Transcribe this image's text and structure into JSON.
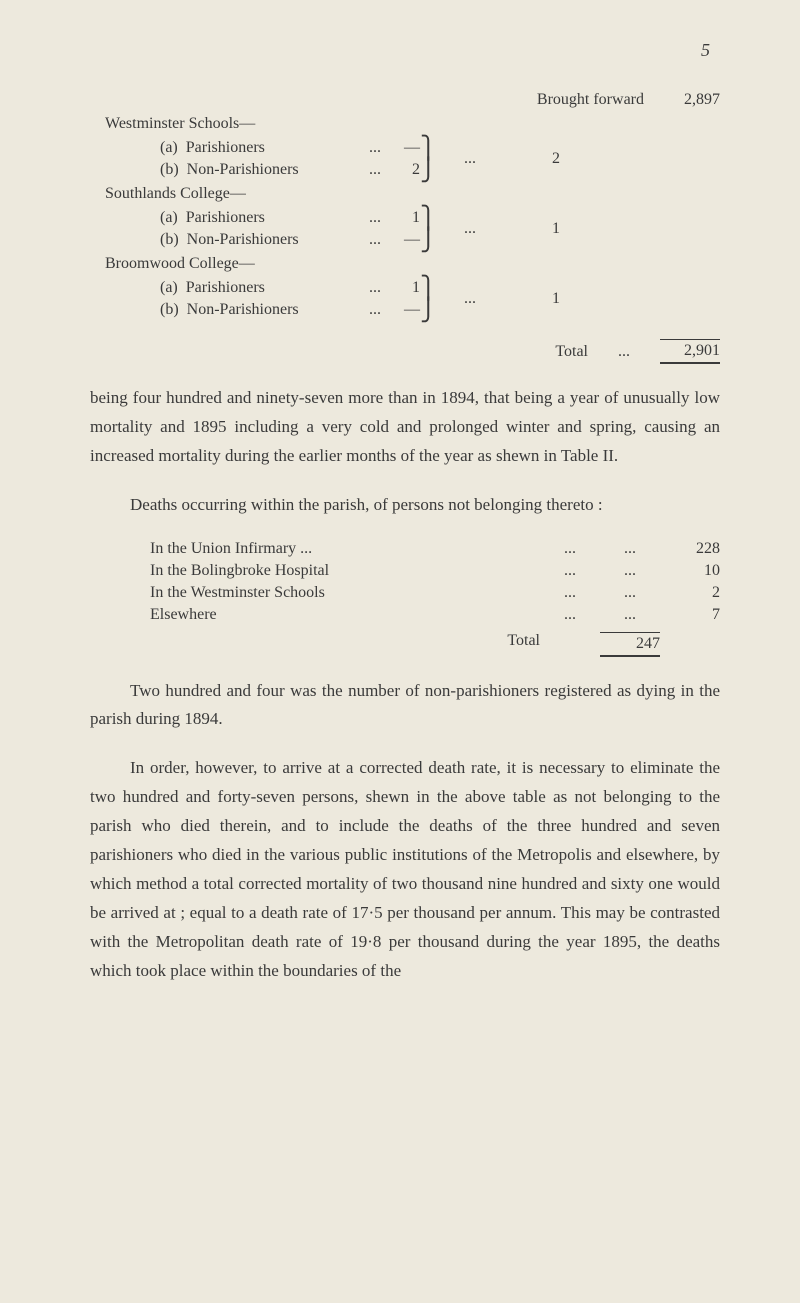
{
  "pageNumber": "5",
  "broughtForward": {
    "label": "Brought forward",
    "value": "2,897"
  },
  "schools": [
    {
      "heading": "Westminster Schools—",
      "items": [
        {
          "key": "(a)",
          "label": "Parishioners",
          "dots": "...",
          "value": "—"
        },
        {
          "key": "(b)",
          "label": "Non-Parishioners",
          "dots": "...",
          "value": "2"
        }
      ],
      "groupDots": "...",
      "groupTotal": "2"
    },
    {
      "heading": "Southlands College—",
      "items": [
        {
          "key": "(a)",
          "label": "Parishioners",
          "dots": "...",
          "value": "1"
        },
        {
          "key": "(b)",
          "label": "Non-Parishioners",
          "dots": "...",
          "value": "—"
        }
      ],
      "groupDots": "...",
      "groupTotal": "1"
    },
    {
      "heading": "Broomwood College—",
      "items": [
        {
          "key": "(a)",
          "label": "Parishioners",
          "dots": "...",
          "value": "1"
        },
        {
          "key": "(b)",
          "label": "Non-Parishioners",
          "dots": "...",
          "value": "—"
        }
      ],
      "groupDots": "...",
      "groupTotal": "1"
    }
  ],
  "total": {
    "label": "Total",
    "dots": "...",
    "value": "2,901"
  },
  "para1": "being four hundred and ninety-seven more than in 1894, that being a year of unusually low mortality and 1895 including a very cold and prolonged winter and spring, causing an increased mortality during the earlier months of the year as shewn in Table II.",
  "para2": "Deaths occurring within the parish, of persons not belonging thereto :",
  "deaths": [
    {
      "label": "In the Union Infirmary ...",
      "d1": "...",
      "d2": "...",
      "value": "228"
    },
    {
      "label": "In the Bolingbroke Hospital",
      "d1": "...",
      "d2": "...",
      "value": "10"
    },
    {
      "label": "In the Westminster Schools",
      "d1": "...",
      "d2": "...",
      "value": "2"
    },
    {
      "label": "Elsewhere",
      "d1": "...",
      "d2": "...",
      "value": "7"
    }
  ],
  "deathsTotal": {
    "label": "Total",
    "value": "247"
  },
  "para3": "Two hundred and four was the number of non-parishioners registered as dying in the parish during 1894.",
  "para4": "In order, however, to arrive at a corrected death rate, it is necessary to eliminate the two hundred and forty-seven persons, shewn in the above table as not belonging to the parish who died therein, and to include the deaths of the three hundred and seven parishioners who died in the various public institutions of the Metropolis and elsewhere, by which method a total corrected mortality of two thousand nine hundred and sixty one would be arrived at ; equal to a death rate of 17·5 per thousand per annum. This may be contrasted with the Metropolitan death rate of 19·8 per thousand during the year 1895, the deaths which took place within the boundaries of the"
}
